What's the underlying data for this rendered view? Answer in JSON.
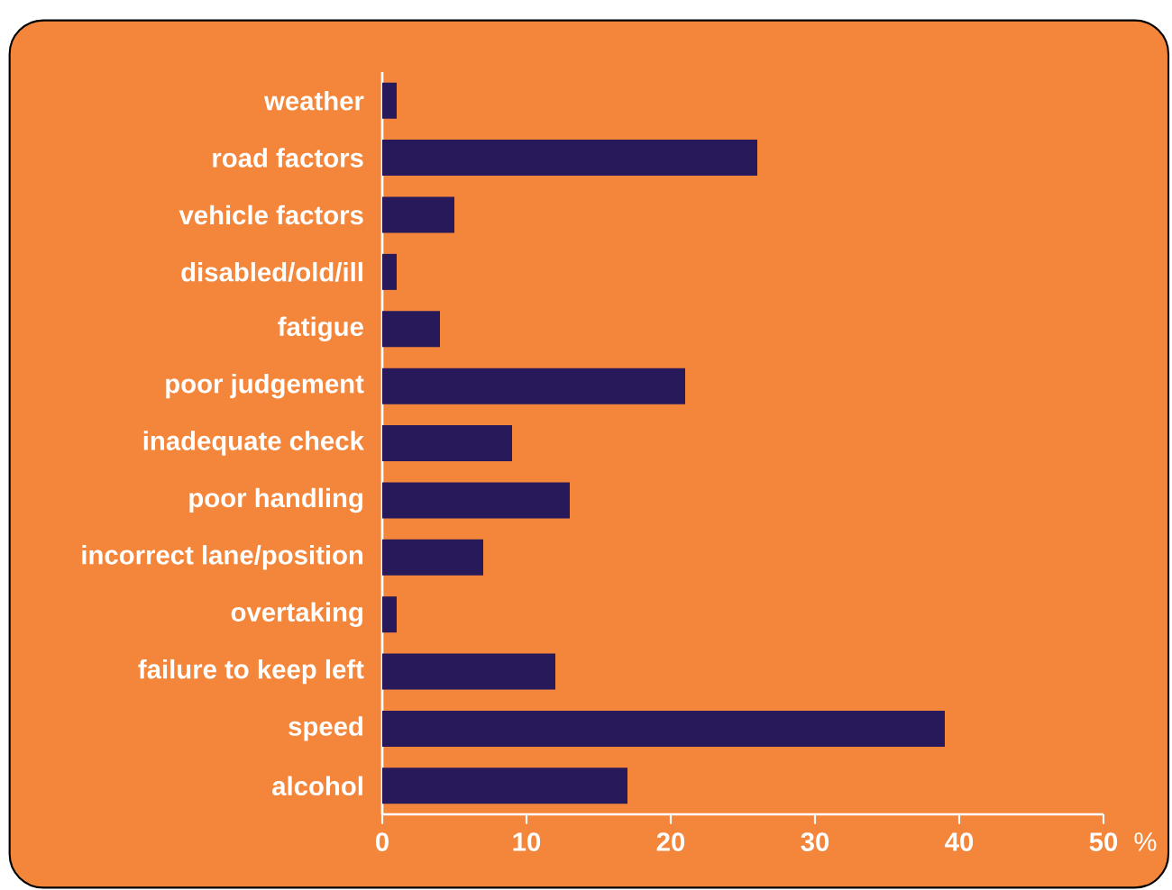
{
  "chart_data": {
    "type": "bar",
    "orientation": "horizontal",
    "categories": [
      "weather",
      "road factors",
      "vehicle factors",
      "disabled/old/ill",
      "fatigue",
      "poor judgement",
      "inadequate check",
      "poor handling",
      "incorrect lane/position",
      "overtaking",
      "failure to keep left",
      "speed",
      "alcohol"
    ],
    "values": [
      1,
      26,
      5,
      1,
      4,
      21,
      9,
      13,
      7,
      1,
      12,
      39,
      17
    ],
    "color": "#27195a",
    "xlabel": "%",
    "xlim": [
      0,
      50
    ],
    "xticks": [
      0,
      10,
      20,
      30,
      40,
      50
    ],
    "grid": false
  }
}
